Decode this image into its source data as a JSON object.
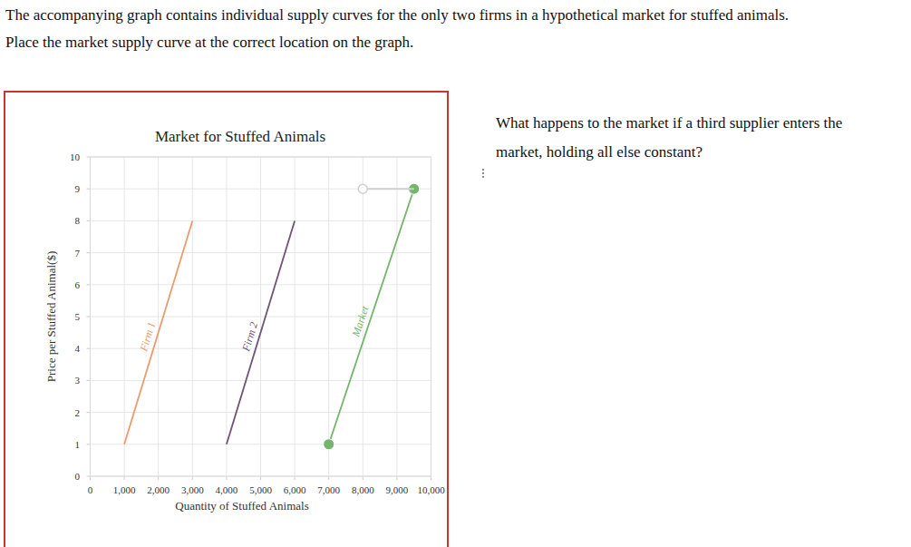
{
  "prompt": [
    "The accompanying graph contains individual supply curves for the only two firms in a hypothetical market for stuffed animals.",
    "Place the market supply curve at the correct location on the graph."
  ],
  "side_question": [
    "What happens to the market if a third supplier enters the",
    "market, holding all else constant?"
  ],
  "chart_data": {
    "type": "line",
    "title": "Market for Stuffed Animals",
    "x_label": "Quantity of Stuffed Animals",
    "y_label": "Price per Stuffed Animal($)",
    "xlim": [
      0,
      10000
    ],
    "ylim": [
      0,
      10
    ],
    "xticks": [
      0,
      {
        "value": 1000,
        "label": "1,000"
      },
      {
        "value": 2000,
        "label": "2,000"
      },
      {
        "value": 3000,
        "label": "3,000"
      },
      {
        "value": 4000,
        "label": "4,000"
      },
      {
        "value": 5000,
        "label": "5,000"
      },
      {
        "value": 6000,
        "label": "6,000"
      },
      {
        "value": 7000,
        "label": "7,000"
      },
      {
        "value": 8000,
        "label": "8,000"
      },
      {
        "value": 9000,
        "label": "9,000"
      },
      {
        "value": 10000,
        "label": "10,000"
      }
    ],
    "yticks": [
      0,
      1,
      2,
      3,
      4,
      5,
      6,
      7,
      8,
      9,
      10
    ],
    "grid": true,
    "series": [
      {
        "name": "Firm 1",
        "color": "#ec9a6e",
        "marker": "none",
        "x": [
          1000,
          3000
        ],
        "values": [
          1,
          8
        ]
      },
      {
        "name": "Firm 2",
        "color": "#6e5573",
        "marker": "none",
        "x": [
          4000,
          6000
        ],
        "values": [
          1,
          8
        ]
      },
      {
        "name": "Market",
        "color": "#72b56b",
        "marker": "circle",
        "x": [
          7000,
          9500
        ],
        "values": [
          1,
          9
        ]
      },
      {
        "color": "#cfcfcf",
        "marker": "open-circle",
        "x": [
          8000,
          9500
        ],
        "values": [
          9,
          9
        ]
      }
    ]
  }
}
